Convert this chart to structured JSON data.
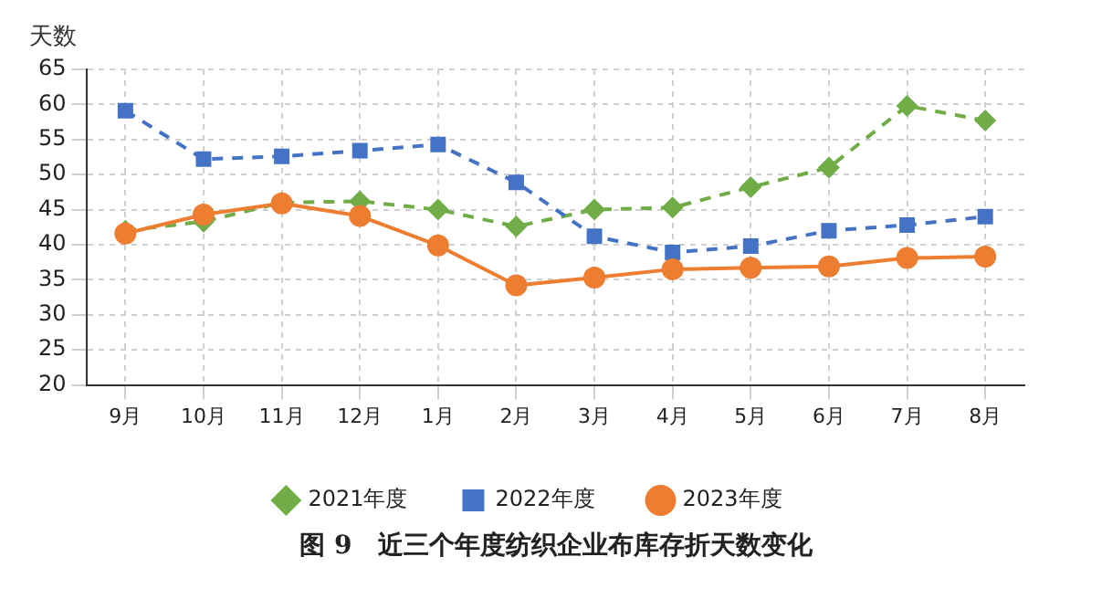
{
  "chart_data": {
    "type": "line",
    "title": "图 9　近三个年度纺织企业布库存折天数变化",
    "ylabel": "天数",
    "categories": [
      "9月",
      "10月",
      "11月",
      "12月",
      "1月",
      "2月",
      "3月",
      "4月",
      "5月",
      "6月",
      "7月",
      "8月"
    ],
    "series": [
      {
        "name": "2021年度",
        "color": "#70ad47",
        "marker": "diamond",
        "line_style": "dashed",
        "values": [
          42,
          43.3,
          46,
          46.2,
          45,
          42.6,
          45,
          45.3,
          48.2,
          51,
          59.8,
          57.7
        ]
      },
      {
        "name": "2022年度",
        "color": "#4472c4",
        "marker": "square",
        "line_style": "dashed",
        "values": [
          59.1,
          52.2,
          52.6,
          53.4,
          54.3,
          48.9,
          41.2,
          38.9,
          39.8,
          42,
          42.8,
          44
        ]
      },
      {
        "name": "2023年度",
        "color": "#ed7d31",
        "marker": "circle",
        "line_style": "solid",
        "values": [
          41.6,
          44.3,
          45.9,
          44.1,
          39.9,
          34.2,
          35.3,
          36.5,
          36.7,
          36.9,
          38.1,
          38.3
        ]
      }
    ],
    "ylim": [
      20,
      65
    ],
    "yticks": [
      20,
      25,
      30,
      35,
      40,
      45,
      50,
      55,
      60,
      65
    ],
    "grid": true,
    "legend": "bottom"
  }
}
